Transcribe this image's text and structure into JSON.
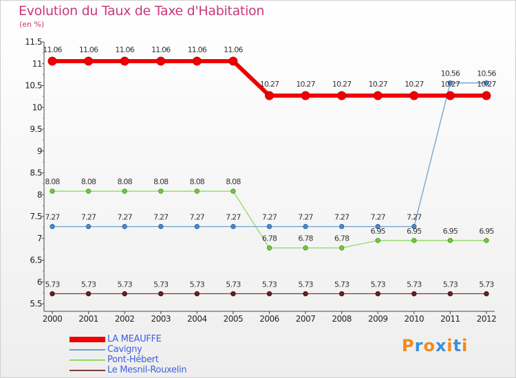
{
  "title": "Evolution du Taux de Taxe d'Habitation",
  "subtitle": "(en %)",
  "brand": {
    "text": "Proxiti",
    "letters": [
      "P",
      "r",
      "o",
      "x",
      "i",
      "t",
      "i"
    ],
    "colors": [
      "#f08a1c",
      "#3c8fd8",
      "#f08a1c",
      "#3c8fd8",
      "#f08a1c",
      "#3c8fd8",
      "#f08a1c"
    ]
  },
  "chart_data": {
    "type": "line",
    "title": "Evolution du Taux de Taxe d'Habitation",
    "subtitle": "(en %)",
    "xlabel": "",
    "ylabel": "(en %)",
    "x": [
      "2000",
      "2001",
      "2002",
      "2003",
      "2004",
      "2005",
      "2006",
      "2007",
      "2008",
      "2009",
      "2010",
      "2011",
      "2012"
    ],
    "ylim": [
      5.5,
      11.5
    ],
    "yticks": [
      "5.5",
      "6",
      "6.5",
      "7",
      "7.5",
      "8",
      "8.5",
      "9",
      "9.5",
      "10",
      "10.5",
      "11",
      "11.5"
    ],
    "grid": false,
    "legend_position": "bottom-left",
    "series": [
      {
        "name": "LA MEAUFFE",
        "color": "#ee0000",
        "values": [
          11.06,
          11.06,
          11.06,
          11.06,
          11.06,
          11.06,
          10.27,
          10.27,
          10.27,
          10.27,
          10.27,
          10.27,
          10.27
        ]
      },
      {
        "name": "Cavigny",
        "color": "#6e9fcf",
        "values": [
          7.27,
          7.27,
          7.27,
          7.27,
          7.27,
          7.27,
          7.27,
          7.27,
          7.27,
          7.27,
          7.27,
          10.56,
          10.56
        ]
      },
      {
        "name": "Pont-Hébert",
        "color": "#90d860",
        "values": [
          8.08,
          8.08,
          8.08,
          8.08,
          8.08,
          8.08,
          6.78,
          6.78,
          6.78,
          6.95,
          6.95,
          6.95,
          6.95
        ]
      },
      {
        "name": "Le Mesnil-Rouxelin",
        "color": "#7b3a3a",
        "values": [
          5.73,
          5.73,
          5.73,
          5.73,
          5.73,
          5.73,
          5.73,
          5.73,
          5.73,
          5.73,
          5.73,
          5.73,
          5.73
        ]
      }
    ],
    "data_labels": [
      [
        "11.06",
        "11.06",
        "11.06",
        "11.06",
        "11.06",
        "11.06",
        "10.27",
        "10.27",
        "10.27",
        "10.27",
        "10.27",
        "10.27",
        "10.27"
      ],
      [
        "7.27",
        "7.27",
        "7.27",
        "7.27",
        "7.27",
        "7.27",
        "7.27",
        "7.27",
        "7.27",
        "7.27",
        "7.27",
        "10.56",
        "10.56"
      ],
      [
        "8.08",
        "8.08",
        "8.08",
        "8.08",
        "8.08",
        "8.08",
        "6.78",
        "6.78",
        "6.78",
        "6.95",
        "6.95",
        "6.95",
        "6.95"
      ],
      [
        "5.73",
        "5.73",
        "5.73",
        "5.73",
        "5.73",
        "5.73",
        "5.73",
        "5.73",
        "5.73",
        "5.73",
        "5.73",
        "5.73",
        "5.73"
      ]
    ]
  }
}
